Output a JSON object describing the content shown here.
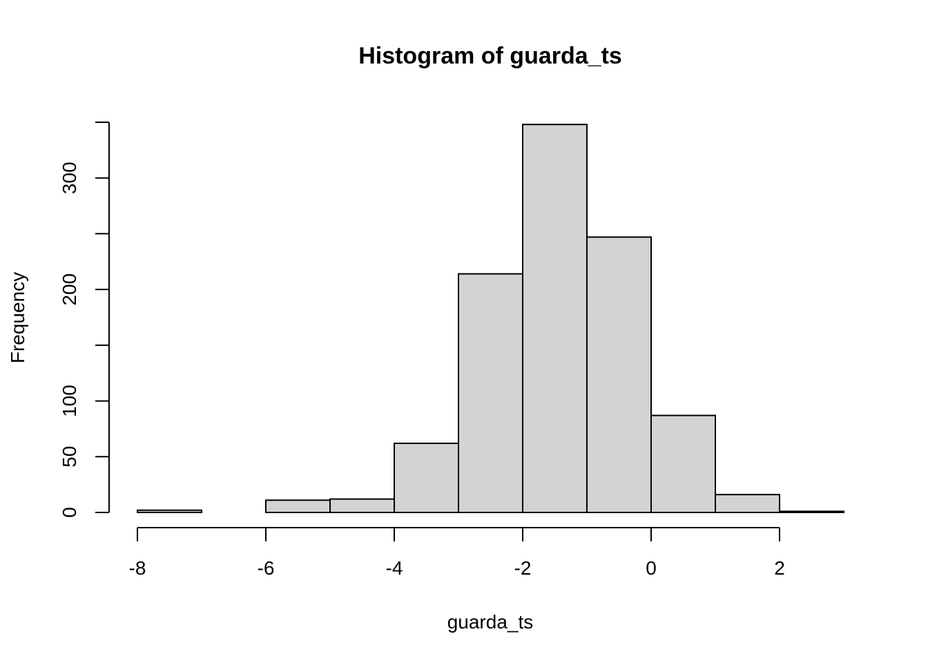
{
  "chart_data": {
    "type": "bar",
    "title": "Histogram of guarda_ts",
    "xlabel": "guarda_ts",
    "ylabel": "Frequency",
    "bar_color": "#d3d3d3",
    "bins": [
      {
        "start": -8,
        "end": -7,
        "count": 2
      },
      {
        "start": -7,
        "end": -6,
        "count": 0
      },
      {
        "start": -6,
        "end": -5,
        "count": 11
      },
      {
        "start": -5,
        "end": -4,
        "count": 12
      },
      {
        "start": -4,
        "end": -3,
        "count": 62
      },
      {
        "start": -3,
        "end": -2,
        "count": 214
      },
      {
        "start": -2,
        "end": -1,
        "count": 348
      },
      {
        "start": -1,
        "end": 0,
        "count": 247
      },
      {
        "start": 0,
        "end": 1,
        "count": 87
      },
      {
        "start": 1,
        "end": 2,
        "count": 16
      },
      {
        "start": 2,
        "end": 3,
        "count": 1
      }
    ],
    "xlim": [
      -8,
      3
    ],
    "ylim": [
      0,
      350
    ],
    "x_ticks": [
      -8,
      -6,
      -4,
      -2,
      0,
      2
    ],
    "x_tick_labels": [
      "-8",
      "-6",
      "-4",
      "-2",
      "0",
      "2"
    ],
    "y_ticks": [
      0,
      50,
      100,
      150,
      200,
      250,
      300,
      350
    ],
    "y_tick_labels": [
      "0",
      "50",
      "100",
      "",
      "200",
      "",
      "300",
      ""
    ]
  }
}
